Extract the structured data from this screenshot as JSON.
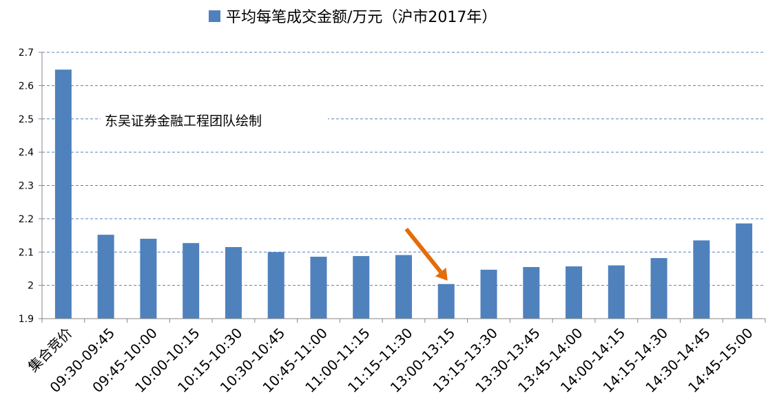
{
  "chart_data": {
    "type": "bar",
    "title": "",
    "xlabel": "",
    "ylabel": "",
    "categories": [
      "集合竞价",
      "09:30-09:45",
      "09:45-10:00",
      "10:00-10:15",
      "10:15-10:30",
      "10:30-10:45",
      "10:45-11:00",
      "11:00-11:15",
      "11:15-11:30",
      "13:00-13:15",
      "13:15-13:30",
      "13:30-13:45",
      "13:45-14:00",
      "14:00-14:15",
      "14:15-14:30",
      "14:30-14:45",
      "14:45-15:00"
    ],
    "series": [
      {
        "name": "平均每笔成交金额/万元（沪市2017年）",
        "color": "#4f81bd",
        "values": [
          2.648,
          2.152,
          2.14,
          2.127,
          2.115,
          2.1,
          2.086,
          2.088,
          2.091,
          2.004,
          2.047,
          2.055,
          2.057,
          2.06,
          2.082,
          2.135,
          2.186
        ]
      }
    ],
    "ylim": [
      1.9,
      2.7
    ],
    "yticks": [
      "1.9",
      "2",
      "2.1",
      "2.2",
      "2.3",
      "2.4",
      "2.5",
      "2.6",
      "2.7"
    ],
    "grid": true,
    "grid_style": "dashed",
    "legend_position": "top",
    "annotation": "东吴证券金融工程团队绘制",
    "arrow_color": "#e46c0a",
    "arrow_target_category": "13:00-13:15"
  }
}
